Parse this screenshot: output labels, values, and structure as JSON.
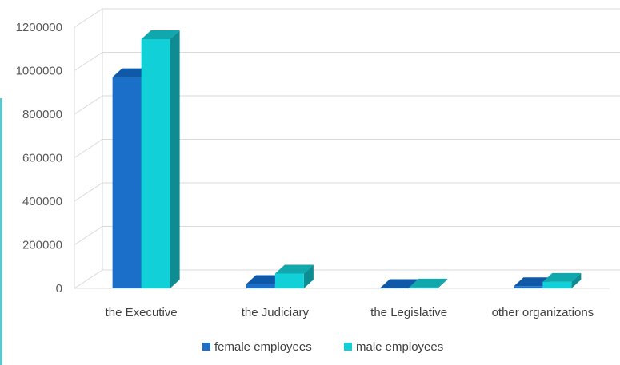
{
  "chart_data": {
    "type": "bar",
    "categories": [
      "the Executive",
      "the Judiciary",
      "the Legislative",
      "other organizations"
    ],
    "series": [
      {
        "name": "female employees",
        "values": [
          970000,
          20000,
          2000,
          10000
        ]
      },
      {
        "name": "male employees",
        "values": [
          1145000,
          68000,
          4000,
          30000
        ]
      }
    ],
    "ylim": [
      0,
      1200000
    ],
    "yticks": [
      "0",
      "200000",
      "400000",
      "600000",
      "800000",
      "1000000",
      "1200000"
    ],
    "grid": true,
    "legend_position": "bottom",
    "colors": {
      "female_front": "#1b6fc8",
      "female_top": "#1059a8",
      "female_side": "#0f4d8f",
      "male_front": "#12d0d8",
      "male_top": "#10a8ad",
      "male_side": "#0d8d92",
      "grid": "#d9d9d9"
    }
  }
}
